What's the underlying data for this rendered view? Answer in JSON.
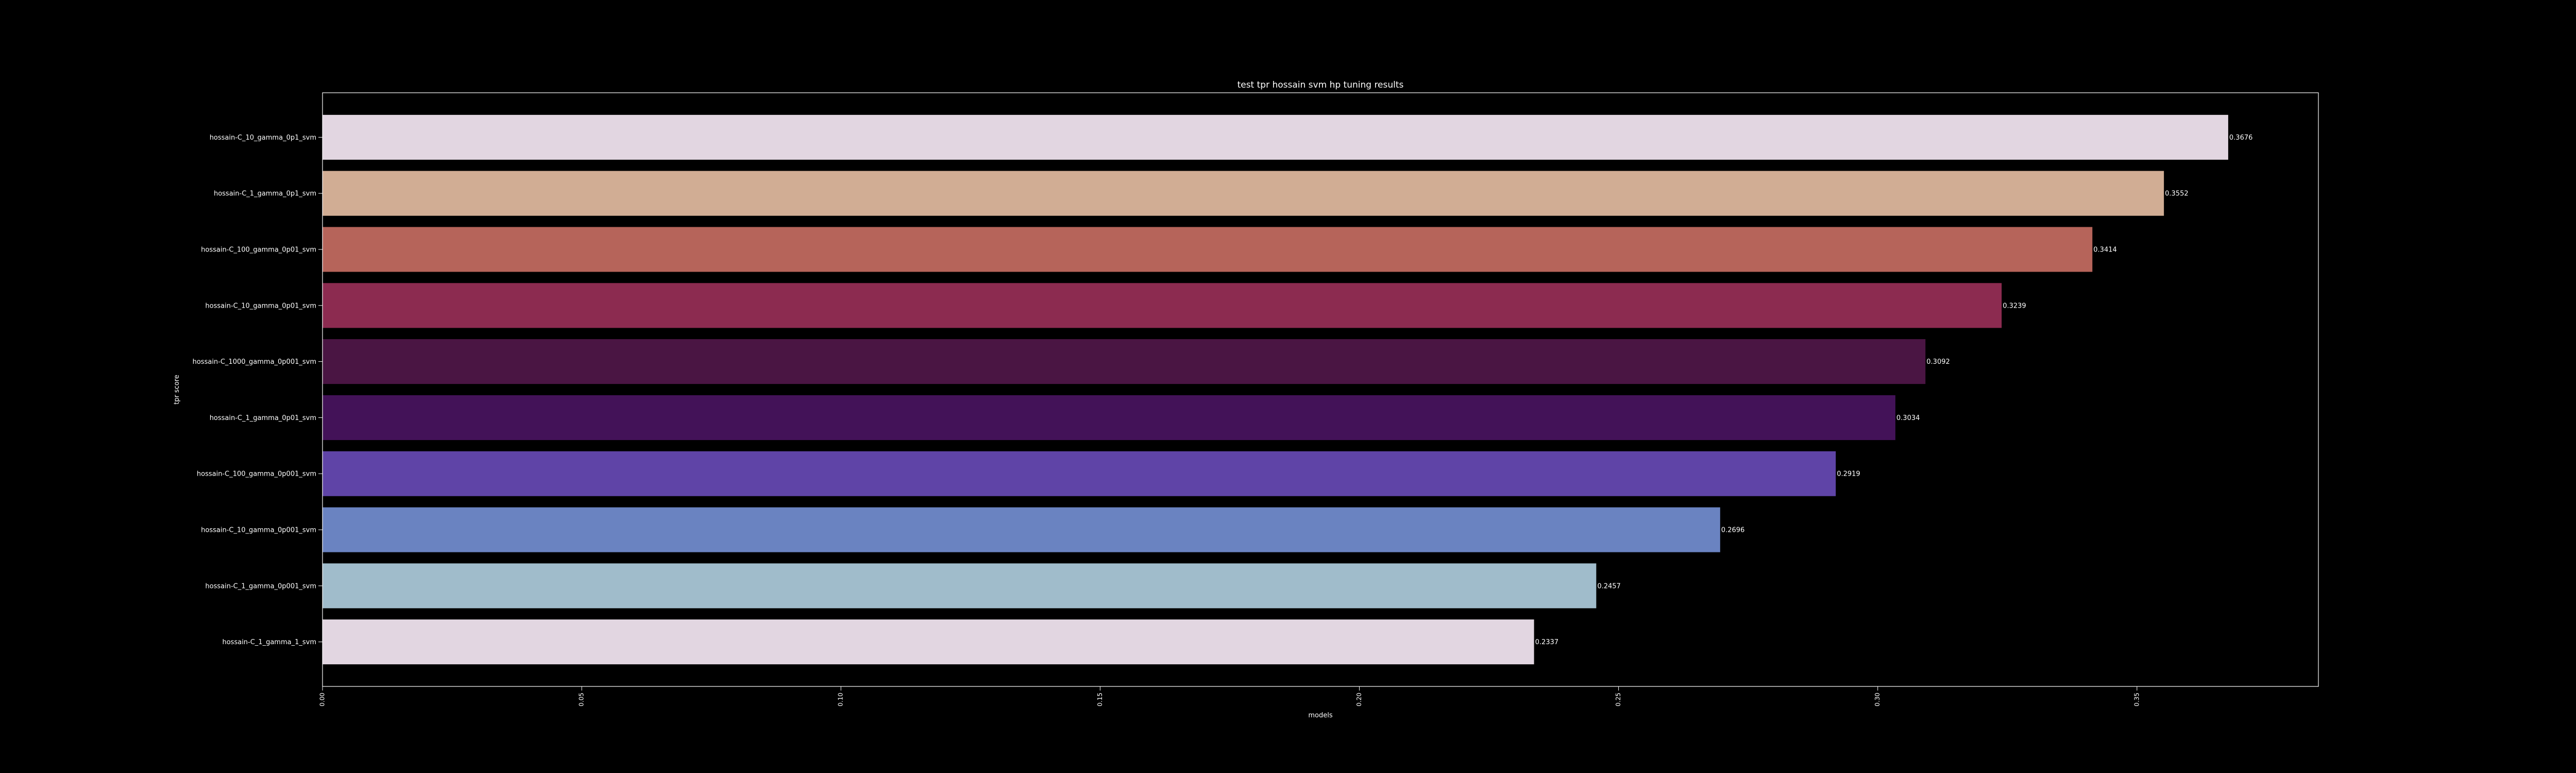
{
  "chart_data": {
    "type": "bar",
    "orientation": "horizontal",
    "title": "test tpr hossain svm hp tuning results",
    "xlabel": "models",
    "ylabel": "tpr score",
    "xlim": [
      0,
      0.385
    ],
    "xticks": [
      "0.00",
      "0.05",
      "0.10",
      "0.15",
      "0.20",
      "0.25",
      "0.30",
      "0.35"
    ],
    "grid": false,
    "background": "#000000",
    "categories": [
      "hossain-C_10_gamma_0p1_svm",
      "hossain-C_1_gamma_0p1_svm",
      "hossain-C_100_gamma_0p01_svm",
      "hossain-C_10_gamma_0p01_svm",
      "hossain-C_1000_gamma_0p001_svm",
      "hossain-C_1_gamma_0p01_svm",
      "hossain-C_100_gamma_0p001_svm",
      "hossain-C_10_gamma_0p001_svm",
      "hossain-C_1_gamma_0p001_svm",
      "hossain-C_1_gamma_1_svm"
    ],
    "values": [
      0.3676,
      0.3552,
      0.3414,
      0.3239,
      0.3092,
      0.3034,
      0.2919,
      0.2696,
      0.2457,
      0.2337
    ],
    "value_labels": [
      "0.3676",
      "0.3552",
      "0.3414",
      "0.3239",
      "0.3092",
      "0.3034",
      "0.2919",
      "0.2696",
      "0.2457",
      "0.2337"
    ],
    "colors": [
      "#e2d6e1",
      "#d1ad94",
      "#b6645a",
      "#8c2b50",
      "#4a1543",
      "#431258",
      "#5f44a7",
      "#6a83c1",
      "#a0bccb",
      "#e2d6e1"
    ]
  }
}
